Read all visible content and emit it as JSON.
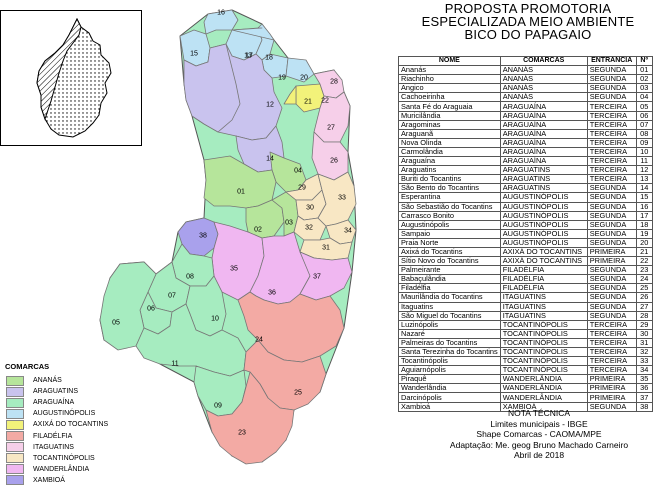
{
  "title": {
    "line1": "PROPOSTA PROMOTORIA",
    "line2": "ESPECIALIZADA MEIO AMBIENTE",
    "line3": "BICO DO PAPAGAIO"
  },
  "table": {
    "headers": {
      "nome": "NOME",
      "comarcas": "COMARCAS",
      "entrancia": "ENTRANCIA",
      "n": "Nº"
    },
    "rows": [
      [
        "Ananás",
        "ANANÁS",
        "SEGUNDA",
        "01"
      ],
      [
        "Riachinho",
        "ANANÁS",
        "SEGUNDA",
        "02"
      ],
      [
        "Angico",
        "ANANÁS",
        "SEGUNDA",
        "03"
      ],
      [
        "Cachoeirinha",
        "ANANÁS",
        "SEGUNDA",
        "04"
      ],
      [
        "Santa Fé do Araguaia",
        "ARAGUAÍNA",
        "TERCEIRA",
        "05"
      ],
      [
        "Muricilândia",
        "ARAGUAÍNA",
        "TERCEIRA",
        "06"
      ],
      [
        "Aragominas",
        "ARAGUAÍNA",
        "TERCEIRA",
        "07"
      ],
      [
        "Araguanã",
        "ARAGUAÍNA",
        "TERCEIRA",
        "08"
      ],
      [
        "Nova Olinda",
        "ARAGUAÍNA",
        "TERCEIRA",
        "09"
      ],
      [
        "Carmolândia",
        "ARAGUAÍNA",
        "TERCEIRA",
        "10"
      ],
      [
        "Araguaína",
        "ARAGUAÍNA",
        "TERCEIRA",
        "11"
      ],
      [
        "Araguatins",
        "ARAGUATINS",
        "TERCEIRA",
        "12"
      ],
      [
        "Buriti do Tocantins",
        "ARAGUATINS",
        "TERCEIRA",
        "13"
      ],
      [
        "São Bento do Tocantins",
        "ARAGUATINS",
        "SEGUNDA",
        "14"
      ],
      [
        "Esperantina",
        "AUGUSTINÓPOLIS",
        "SEGUNDA",
        "15"
      ],
      [
        "São Sebastião do Tocantins",
        "AUGUSTINÓPOLIS",
        "SEGUNDA",
        "16"
      ],
      [
        "Carrasco Bonito",
        "AUGUSTINÓPOLIS",
        "SEGUNDA",
        "17"
      ],
      [
        "Augustinópolis",
        "AUGUSTINÓPOLIS",
        "SEGUNDA",
        "18"
      ],
      [
        "Sampaio",
        "AUGUSTINÓPOLIS",
        "SEGUNDA",
        "19"
      ],
      [
        "Praia Norte",
        "AUGUSTINÓPOLIS",
        "SEGUNDA",
        "20"
      ],
      [
        "Axixá do Tocantins",
        "AXIXÁ DO TOCANTINS",
        "PRIMEIRA",
        "21"
      ],
      [
        "Sítio Novo do Tocantins",
        "AXIXÁ DO TOCANTINS",
        "PRIMEIRA",
        "22"
      ],
      [
        "Palmeirante",
        "FILADÉLFIA",
        "SEGUNDA",
        "23"
      ],
      [
        "Babaçulândia",
        "FILADÉLFIA",
        "SEGUNDA",
        "24"
      ],
      [
        "Filadélfia",
        "FILADÉLFIA",
        "SEGUNDA",
        "25"
      ],
      [
        "Maurilândia do Tocantins",
        "ITAGUATINS",
        "SEGUNDA",
        "26"
      ],
      [
        "Itaguatins",
        "ITAGUATINS",
        "SEGUNDA",
        "27"
      ],
      [
        "São Miguel do Tocantins",
        "ITAGUATINS",
        "SEGUNDA",
        "28"
      ],
      [
        "Luzinópolis",
        "TOCANTINÓPOLIS",
        "TERCEIRA",
        "29"
      ],
      [
        "Nazaré",
        "TOCANTINÓPOLIS",
        "TERCEIRA",
        "30"
      ],
      [
        "Palmeiras do Tocantins",
        "TOCANTINÓPOLIS",
        "TERCEIRA",
        "31"
      ],
      [
        "Santa Terezinha do Tocantins",
        "TOCANTINÓPOLIS",
        "TERCEIRA",
        "32"
      ],
      [
        "Tocantinópolis",
        "TOCANTINÓPOLIS",
        "TERCEIRA",
        "33"
      ],
      [
        "Aguiarnópolis",
        "TOCANTINÓPOLIS",
        "TERCEIRA",
        "34"
      ],
      [
        "Piraquê",
        "WANDERLÂNDIA",
        "PRIMEIRA",
        "35"
      ],
      [
        "Wanderlândia",
        "WANDERLÂNDIA",
        "PRIMEIRA",
        "36"
      ],
      [
        "Darcinópolis",
        "WANDERLÂNDIA",
        "PRIMEIRA",
        "37"
      ],
      [
        "Xambioá",
        "XAMBIOÁ",
        "SEGUNDA",
        "38"
      ]
    ]
  },
  "legend": {
    "title": "COMARCAS",
    "items": [
      {
        "label": "ANANÁS",
        "color": "#b6e59b"
      },
      {
        "label": "ARAGUATINS",
        "color": "#c9c3ee"
      },
      {
        "label": "ARAGUAÍNA",
        "color": "#a6ecc0"
      },
      {
        "label": "AUGUSTINÓPOLIS",
        "color": "#bde2f4"
      },
      {
        "label": "AXIXÁ DO TOCANTINS",
        "color": "#f2f27a"
      },
      {
        "label": "FILADÉLFIA",
        "color": "#f3aaa4"
      },
      {
        "label": "ITAGUATINS",
        "color": "#f6cfe9"
      },
      {
        "label": "TOCANTINÓPOLIS",
        "color": "#f8e7c4"
      },
      {
        "label": "WANDERLÂNDIA",
        "color": "#f0b7f1"
      },
      {
        "label": "XAMBIOÁ",
        "color": "#a9a1ec"
      }
    ]
  },
  "map_labels": [
    "01",
    "02",
    "03",
    "04",
    "05",
    "06",
    "07",
    "08",
    "09",
    "10",
    "11",
    "12",
    "13",
    "14",
    "15",
    "16",
    "17",
    "18",
    "19",
    "20",
    "21",
    "22",
    "23",
    "24",
    "25",
    "26",
    "27",
    "28",
    "29",
    "30",
    "31",
    "32",
    "33",
    "34",
    "35",
    "36",
    "37",
    "38"
  ],
  "note": {
    "line1": "NOTA TÉCNICA",
    "line2": "Limites municipais - IBGE",
    "line3": "Shape Comarcas - CAOMA/MPE",
    "line4": "Adaptação: Me. geog Bruno Machado Carneiro",
    "line5": "Abril de 2018"
  }
}
